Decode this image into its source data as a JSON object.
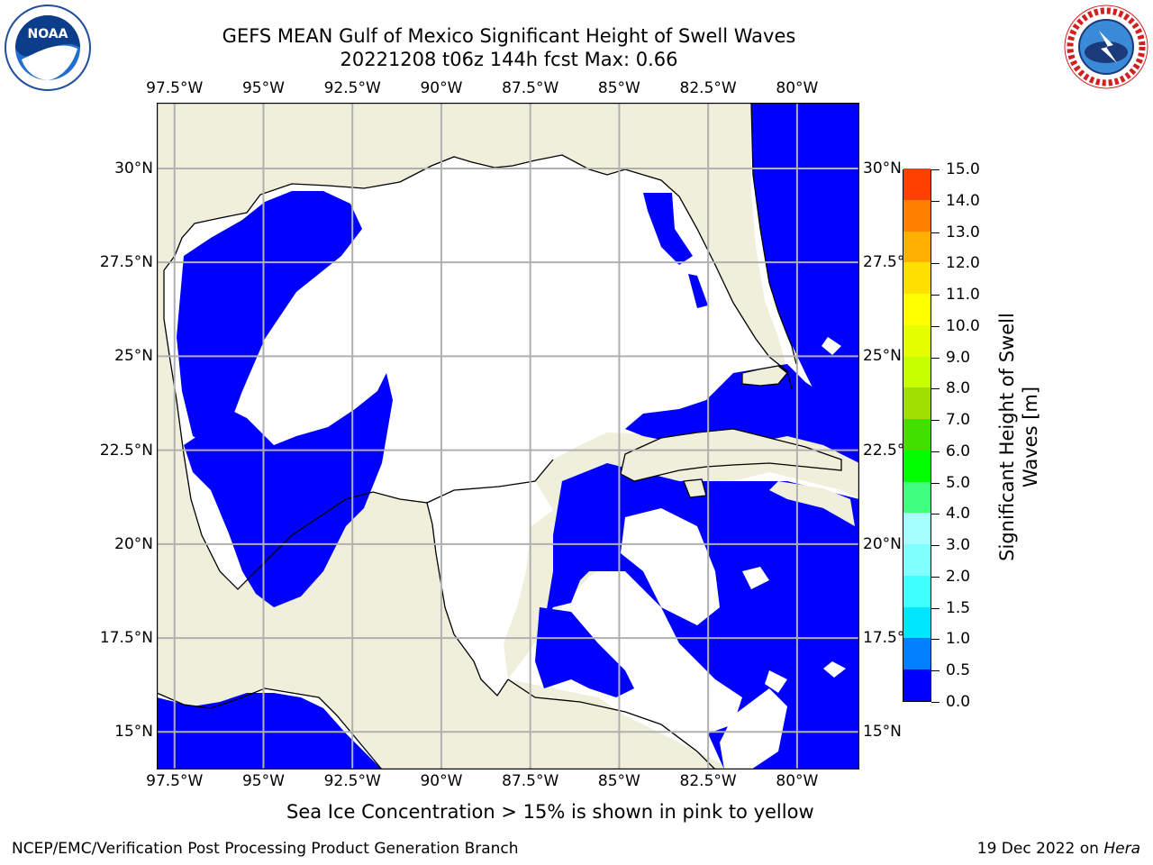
{
  "title": "GEFS MEAN Gulf of Mexico Significant Height of Swell Waves",
  "subtitle": "20221208 t06z 144h fcst   Max: 0.66",
  "map": {
    "lon_ticks": [
      "97.5°W",
      "95°W",
      "92.5°W",
      "90°W",
      "87.5°W",
      "85°W",
      "82.5°W",
      "80°W"
    ],
    "lat_ticks": [
      "30°N",
      "27.5°N",
      "25°N",
      "22.5°N",
      "20°N",
      "17.5°N",
      "15°N"
    ],
    "lon_values": [
      -97.5,
      -95,
      -92.5,
      -90,
      -87.5,
      -85,
      -82.5,
      -80
    ],
    "lat_values": [
      30,
      27.5,
      25,
      22.5,
      20,
      17.5,
      15
    ],
    "lon_range": [
      -98.0,
      -78.25
    ],
    "lat_range": [
      14.0,
      31.75
    ],
    "colors": {
      "land": "#efefdc",
      "sea_low": "#0000ff",
      "sea_zero": "#ffffff",
      "grid": "#b0b0b0",
      "coast": "#000000"
    }
  },
  "colorbar": {
    "label": "Significant Height of Swell Waves [m]",
    "tick_labels": [
      "0.0",
      "0.5",
      "1.0",
      "1.5",
      "2.0",
      "3.0",
      "4.0",
      "5.0",
      "6.0",
      "7.0",
      "8.0",
      "9.0",
      "10.0",
      "11.0",
      "12.0",
      "13.0",
      "14.0",
      "15.0"
    ],
    "colors": [
      "#0000ff",
      "#0080ff",
      "#00e6ff",
      "#40ffff",
      "#80ffff",
      "#a6ffff",
      "#40ff80",
      "#00ff00",
      "#40e000",
      "#a0e000",
      "#c8ff00",
      "#e6ff00",
      "#ffff00",
      "#ffe000",
      "#ffb000",
      "#ff8000",
      "#ff4000",
      "#ff0000"
    ]
  },
  "note": "Sea Ice Concentration > 15% is shown in pink to yellow",
  "credit": "NCEP/EMC/Verification Post Processing Product Generation Branch",
  "date": "19 Dec 2022 on ",
  "machine": "Hera",
  "logos": {
    "noaa": "NOAA",
    "nws": "NATIONAL WEATHER SERVICE"
  }
}
